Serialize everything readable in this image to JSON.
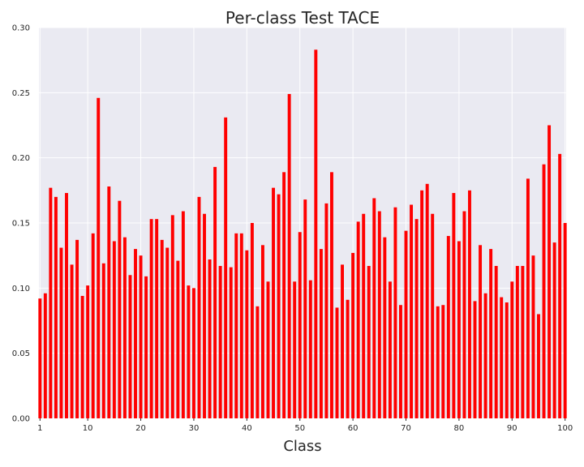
{
  "chart_data": {
    "type": "bar",
    "title": "Per-class Test TACE",
    "xlabel": "Class",
    "ylabel": "",
    "xlim": [
      0.8,
      100.2
    ],
    "ylim": [
      0,
      0.3
    ],
    "xticks": [
      1,
      10,
      20,
      30,
      40,
      50,
      60,
      70,
      80,
      90,
      100
    ],
    "yticks": [
      0.0,
      0.05,
      0.1,
      0.15,
      0.2,
      0.25,
      0.3
    ],
    "grid": true,
    "colors": {
      "bar": "#ff0000",
      "plot_bg": "#eaeaf2",
      "grid": "#ffffff"
    },
    "x": [
      1,
      2,
      3,
      4,
      5,
      6,
      7,
      8,
      9,
      10,
      11,
      12,
      13,
      14,
      15,
      16,
      17,
      18,
      19,
      20,
      21,
      22,
      23,
      24,
      25,
      26,
      27,
      28,
      29,
      30,
      31,
      32,
      33,
      34,
      35,
      36,
      37,
      38,
      39,
      40,
      41,
      42,
      43,
      44,
      45,
      46,
      47,
      48,
      49,
      50,
      51,
      52,
      53,
      54,
      55,
      56,
      57,
      58,
      59,
      60,
      61,
      62,
      63,
      64,
      65,
      66,
      67,
      68,
      69,
      70,
      71,
      72,
      73,
      74,
      75,
      76,
      77,
      78,
      79,
      80,
      81,
      82,
      83,
      84,
      85,
      86,
      87,
      88,
      89,
      90,
      91,
      92,
      93,
      94,
      95,
      96,
      97,
      98,
      99,
      100
    ],
    "values": [
      0.092,
      0.096,
      0.177,
      0.17,
      0.131,
      0.173,
      0.118,
      0.137,
      0.094,
      0.102,
      0.142,
      0.246,
      0.119,
      0.178,
      0.136,
      0.167,
      0.139,
      0.11,
      0.13,
      0.125,
      0.109,
      0.153,
      0.153,
      0.137,
      0.131,
      0.156,
      0.121,
      0.159,
      0.102,
      0.1,
      0.17,
      0.157,
      0.122,
      0.193,
      0.117,
      0.231,
      0.116,
      0.142,
      0.142,
      0.129,
      0.15,
      0.086,
      0.133,
      0.105,
      0.177,
      0.172,
      0.189,
      0.249,
      0.105,
      0.143,
      0.168,
      0.106,
      0.283,
      0.13,
      0.165,
      0.189,
      0.085,
      0.118,
      0.091,
      0.127,
      0.151,
      0.157,
      0.117,
      0.169,
      0.159,
      0.139,
      0.105,
      0.162,
      0.087,
      0.144,
      0.164,
      0.153,
      0.175,
      0.18,
      0.157,
      0.086,
      0.087,
      0.14,
      0.173,
      0.136,
      0.159,
      0.175,
      0.09,
      0.133,
      0.096,
      0.13,
      0.117,
      0.093,
      0.089,
      0.105,
      0.117,
      0.117,
      0.184,
      0.125,
      0.08,
      0.195,
      0.225,
      0.135,
      0.203,
      0.15
    ]
  }
}
